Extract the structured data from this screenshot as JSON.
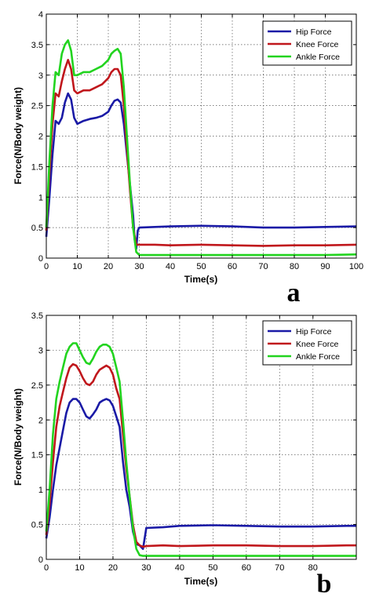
{
  "chart_data": [
    {
      "type": "line",
      "panel_label": "a",
      "xlabel": "Time(s)",
      "ylabel": "Force(N/Body weight)",
      "xlim": [
        0,
        100
      ],
      "ylim": [
        0,
        4
      ],
      "xticks": [
        0,
        10,
        20,
        30,
        40,
        50,
        60,
        70,
        80,
        90,
        100
      ],
      "yticks": [
        0,
        0.5,
        1,
        1.5,
        2,
        2.5,
        3,
        3.5,
        4
      ],
      "ytick_labels": [
        "0",
        "0.5",
        "1",
        "1.5",
        "2",
        "2.5",
        "3",
        "3.5",
        "4"
      ],
      "grid": true,
      "legend_position": "top-right",
      "series": [
        {
          "name": "Hip Force",
          "color": "#1a1aa6",
          "x": [
            0,
            1,
            2,
            3,
            4,
            5,
            6,
            7,
            8,
            9,
            10,
            12,
            14,
            16,
            18,
            20,
            21,
            22,
            23,
            24,
            25,
            26,
            27,
            28,
            28.5,
            29,
            29.5,
            30,
            35,
            40,
            50,
            60,
            70,
            80,
            90,
            100
          ],
          "y": [
            0.35,
            1.0,
            1.7,
            2.25,
            2.2,
            2.3,
            2.55,
            2.7,
            2.6,
            2.3,
            2.2,
            2.25,
            2.28,
            2.3,
            2.33,
            2.4,
            2.5,
            2.58,
            2.6,
            2.55,
            2.2,
            1.7,
            1.2,
            0.7,
            0.3,
            0.15,
            0.45,
            0.5,
            0.51,
            0.52,
            0.53,
            0.52,
            0.5,
            0.5,
            0.51,
            0.52
          ]
        },
        {
          "name": "Knee Force",
          "color": "#c0171c",
          "x": [
            0,
            1,
            2,
            3,
            4,
            5,
            6,
            7,
            8,
            9,
            10,
            12,
            14,
            16,
            18,
            20,
            21,
            22,
            23,
            24,
            25,
            26,
            27,
            28,
            29,
            30,
            35,
            40,
            50,
            60,
            70,
            80,
            90,
            100
          ],
          "y": [
            0.45,
            1.4,
            2.2,
            2.7,
            2.65,
            2.9,
            3.1,
            3.25,
            3.1,
            2.75,
            2.7,
            2.75,
            2.75,
            2.8,
            2.85,
            2.95,
            3.05,
            3.1,
            3.1,
            3.0,
            2.5,
            1.8,
            1.1,
            0.5,
            0.22,
            0.22,
            0.22,
            0.21,
            0.22,
            0.21,
            0.2,
            0.21,
            0.21,
            0.22
          ]
        },
        {
          "name": "Ankle Force",
          "color": "#22d41f",
          "x": [
            0,
            1,
            2,
            3,
            4,
            5,
            6,
            7,
            8,
            9,
            10,
            12,
            14,
            16,
            18,
            20,
            21,
            22,
            23,
            24,
            25,
            26,
            27,
            28,
            29,
            30,
            35,
            40,
            50,
            60,
            70,
            80,
            90,
            100
          ],
          "y": [
            0.5,
            1.6,
            2.5,
            3.05,
            3.0,
            3.35,
            3.5,
            3.57,
            3.4,
            3.0,
            3.0,
            3.05,
            3.05,
            3.1,
            3.15,
            3.25,
            3.35,
            3.4,
            3.43,
            3.35,
            2.8,
            2.0,
            1.2,
            0.5,
            0.1,
            0.05,
            0.05,
            0.05,
            0.05,
            0.05,
            0.05,
            0.05,
            0.05,
            0.06
          ]
        }
      ]
    },
    {
      "type": "line",
      "panel_label": "b",
      "xlabel": "Time(s)",
      "ylabel": "Force(N/Body weight)",
      "xlim": [
        0,
        93
      ],
      "ylim": [
        0,
        3.5
      ],
      "xticks": [
        0,
        10,
        20,
        30,
        40,
        50,
        60,
        70,
        80
      ],
      "yticks": [
        0,
        0.5,
        1,
        1.5,
        2,
        2.5,
        3,
        3.5
      ],
      "ytick_labels": [
        "0",
        "0.5",
        "1",
        "1.5",
        "2",
        "2.5",
        "3",
        "3.5"
      ],
      "grid": true,
      "legend_position": "top-right",
      "series": [
        {
          "name": "Hip Force",
          "color": "#1a1aa6",
          "x": [
            0,
            1,
            2,
            3,
            4,
            5,
            6,
            7,
            8,
            9,
            10,
            11,
            12,
            13,
            14,
            15,
            16,
            17,
            18,
            19,
            20,
            21,
            22,
            23,
            24,
            25,
            26,
            27,
            28,
            29,
            30,
            35,
            40,
            50,
            60,
            70,
            80,
            90,
            93
          ],
          "y": [
            0.3,
            0.6,
            1.0,
            1.35,
            1.6,
            1.85,
            2.1,
            2.25,
            2.3,
            2.3,
            2.25,
            2.15,
            2.05,
            2.02,
            2.08,
            2.15,
            2.25,
            2.28,
            2.3,
            2.28,
            2.2,
            2.05,
            1.9,
            1.4,
            1.0,
            0.75,
            0.4,
            0.22,
            0.2,
            0.15,
            0.45,
            0.46,
            0.48,
            0.49,
            0.48,
            0.47,
            0.47,
            0.48,
            0.48
          ]
        },
        {
          "name": "Knee Force",
          "color": "#c0171c",
          "x": [
            0,
            1,
            2,
            3,
            4,
            5,
            6,
            7,
            8,
            9,
            10,
            11,
            12,
            13,
            14,
            15,
            16,
            17,
            18,
            19,
            20,
            21,
            22,
            23,
            24,
            25,
            26,
            27,
            28,
            29,
            30,
            35,
            40,
            50,
            60,
            70,
            80,
            90,
            93
          ],
          "y": [
            0.35,
            0.8,
            1.4,
            1.9,
            2.2,
            2.4,
            2.6,
            2.75,
            2.8,
            2.78,
            2.7,
            2.6,
            2.52,
            2.5,
            2.55,
            2.65,
            2.72,
            2.75,
            2.78,
            2.75,
            2.65,
            2.45,
            2.3,
            1.8,
            1.3,
            0.9,
            0.5,
            0.25,
            0.2,
            0.18,
            0.19,
            0.2,
            0.19,
            0.2,
            0.2,
            0.19,
            0.19,
            0.2,
            0.2
          ]
        },
        {
          "name": "Ankle Force",
          "color": "#22d41f",
          "x": [
            0,
            1,
            2,
            3,
            4,
            5,
            6,
            7,
            8,
            9,
            10,
            11,
            12,
            13,
            14,
            15,
            16,
            17,
            18,
            19,
            20,
            21,
            22,
            23,
            24,
            25,
            26,
            27,
            28,
            29,
            30,
            35,
            40,
            50,
            60,
            70,
            80,
            90,
            93
          ],
          "y": [
            0.4,
            1.0,
            1.8,
            2.3,
            2.55,
            2.75,
            2.95,
            3.05,
            3.1,
            3.1,
            3.0,
            2.9,
            2.82,
            2.8,
            2.88,
            2.98,
            3.05,
            3.08,
            3.08,
            3.05,
            2.95,
            2.75,
            2.55,
            2.0,
            1.4,
            0.9,
            0.45,
            0.15,
            0.06,
            0.05,
            0.05,
            0.05,
            0.05,
            0.05,
            0.05,
            0.05,
            0.05,
            0.05,
            0.05
          ]
        }
      ]
    }
  ]
}
